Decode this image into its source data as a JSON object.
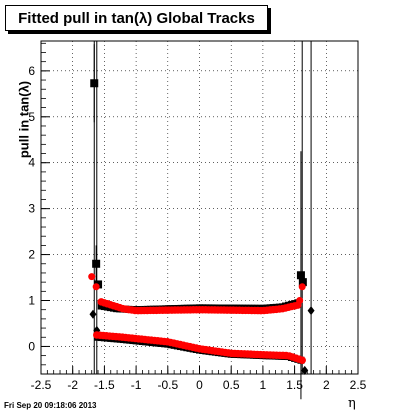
{
  "chart_data": {
    "type": "scatter",
    "title": "Fitted pull in tan(λ)  Global Tracks",
    "ylabel": "pull in tan(λ)",
    "xlabel": "η",
    "xlim": [
      -2.5,
      2.5
    ],
    "ylim": [
      -0.6,
      6.65
    ],
    "x_ticks": [
      -2.5,
      -2,
      -1.5,
      -1,
      -0.5,
      0,
      0.5,
      1,
      1.5,
      2,
      2.5
    ],
    "x_tick_labels": [
      "-2.5",
      "-2",
      "-1.5",
      "-1",
      "-0.5",
      "0",
      "0.5",
      "1",
      "1.5",
      "2",
      "2.5"
    ],
    "y_ticks": [
      0,
      1,
      2,
      3,
      4,
      5,
      6
    ],
    "y_tick_labels": [
      "0",
      "1",
      "2",
      "3",
      "4",
      "5",
      "6"
    ],
    "grid": true,
    "series": [
      {
        "color": "#000000",
        "marker": "square",
        "points": [
          [
            -1.66,
            5.73
          ],
          [
            -1.63,
            1.8
          ],
          [
            -1.6,
            1.35
          ],
          [
            1.6,
            1.55
          ],
          [
            1.63,
            1.4
          ]
        ],
        "errors": [
          [
            -1.66,
            5.73,
            0.85
          ],
          [
            -1.63,
            1.8,
            0.4
          ],
          [
            1.6,
            1.55,
            2.7
          ]
        ]
      },
      {
        "color": "#000000",
        "marker": "diamond",
        "points": [
          [
            -1.68,
            0.7
          ],
          [
            -1.62,
            0.35
          ],
          [
            1.76,
            0.78
          ],
          [
            1.66,
            -0.52
          ],
          [
            1.6,
            -0.3
          ]
        ]
      },
      {
        "color": "#000000",
        "marker": "square",
        "band": "upper",
        "x_range": [
          -1.55,
          1.55
        ],
        "y_profile": [
          [
            -1.55,
            0.88
          ],
          [
            -1.3,
            0.82
          ],
          [
            -1.0,
            0.8
          ],
          [
            0.0,
            0.84
          ],
          [
            1.0,
            0.83
          ],
          [
            1.3,
            0.86
          ],
          [
            1.55,
            0.95
          ]
        ]
      },
      {
        "color": "#000000",
        "marker": "square",
        "band": "lower",
        "x_range": [
          -1.6,
          1.6
        ],
        "y_profile": [
          [
            -1.6,
            0.2
          ],
          [
            -1.2,
            0.15
          ],
          [
            -0.5,
            0.05
          ],
          [
            0.0,
            -0.08
          ],
          [
            0.5,
            -0.17
          ],
          [
            1.0,
            -0.2
          ],
          [
            1.4,
            -0.22
          ],
          [
            1.6,
            -0.3
          ]
        ]
      },
      {
        "color": "#ff0000",
        "marker": "circle",
        "points": [
          [
            -1.7,
            1.52
          ],
          [
            -1.63,
            1.3
          ],
          [
            1.62,
            1.3
          ],
          [
            1.58,
            1.0
          ]
        ]
      },
      {
        "color": "#ff0000",
        "marker": "circle",
        "band": "upper",
        "x_range": [
          -1.55,
          1.55
        ],
        "y_profile": [
          [
            -1.55,
            0.97
          ],
          [
            -1.2,
            0.82
          ],
          [
            -1.0,
            0.78
          ],
          [
            0.0,
            0.8
          ],
          [
            1.0,
            0.78
          ],
          [
            1.3,
            0.82
          ],
          [
            1.55,
            0.9
          ]
        ]
      },
      {
        "color": "#ff0000",
        "marker": "circle",
        "band": "lower",
        "x_range": [
          -1.62,
          1.62
        ],
        "y_profile": [
          [
            -1.62,
            0.25
          ],
          [
            -1.2,
            0.2
          ],
          [
            -0.5,
            0.1
          ],
          [
            0.0,
            -0.05
          ],
          [
            0.5,
            -0.15
          ],
          [
            1.0,
            -0.18
          ],
          [
            1.4,
            -0.2
          ],
          [
            1.62,
            -0.3
          ]
        ]
      }
    ],
    "vertical_lines": [
      -1.66,
      -1.62,
      1.62,
      1.76
    ]
  },
  "footer": "Fri Sep 20 09:18:06 2013"
}
